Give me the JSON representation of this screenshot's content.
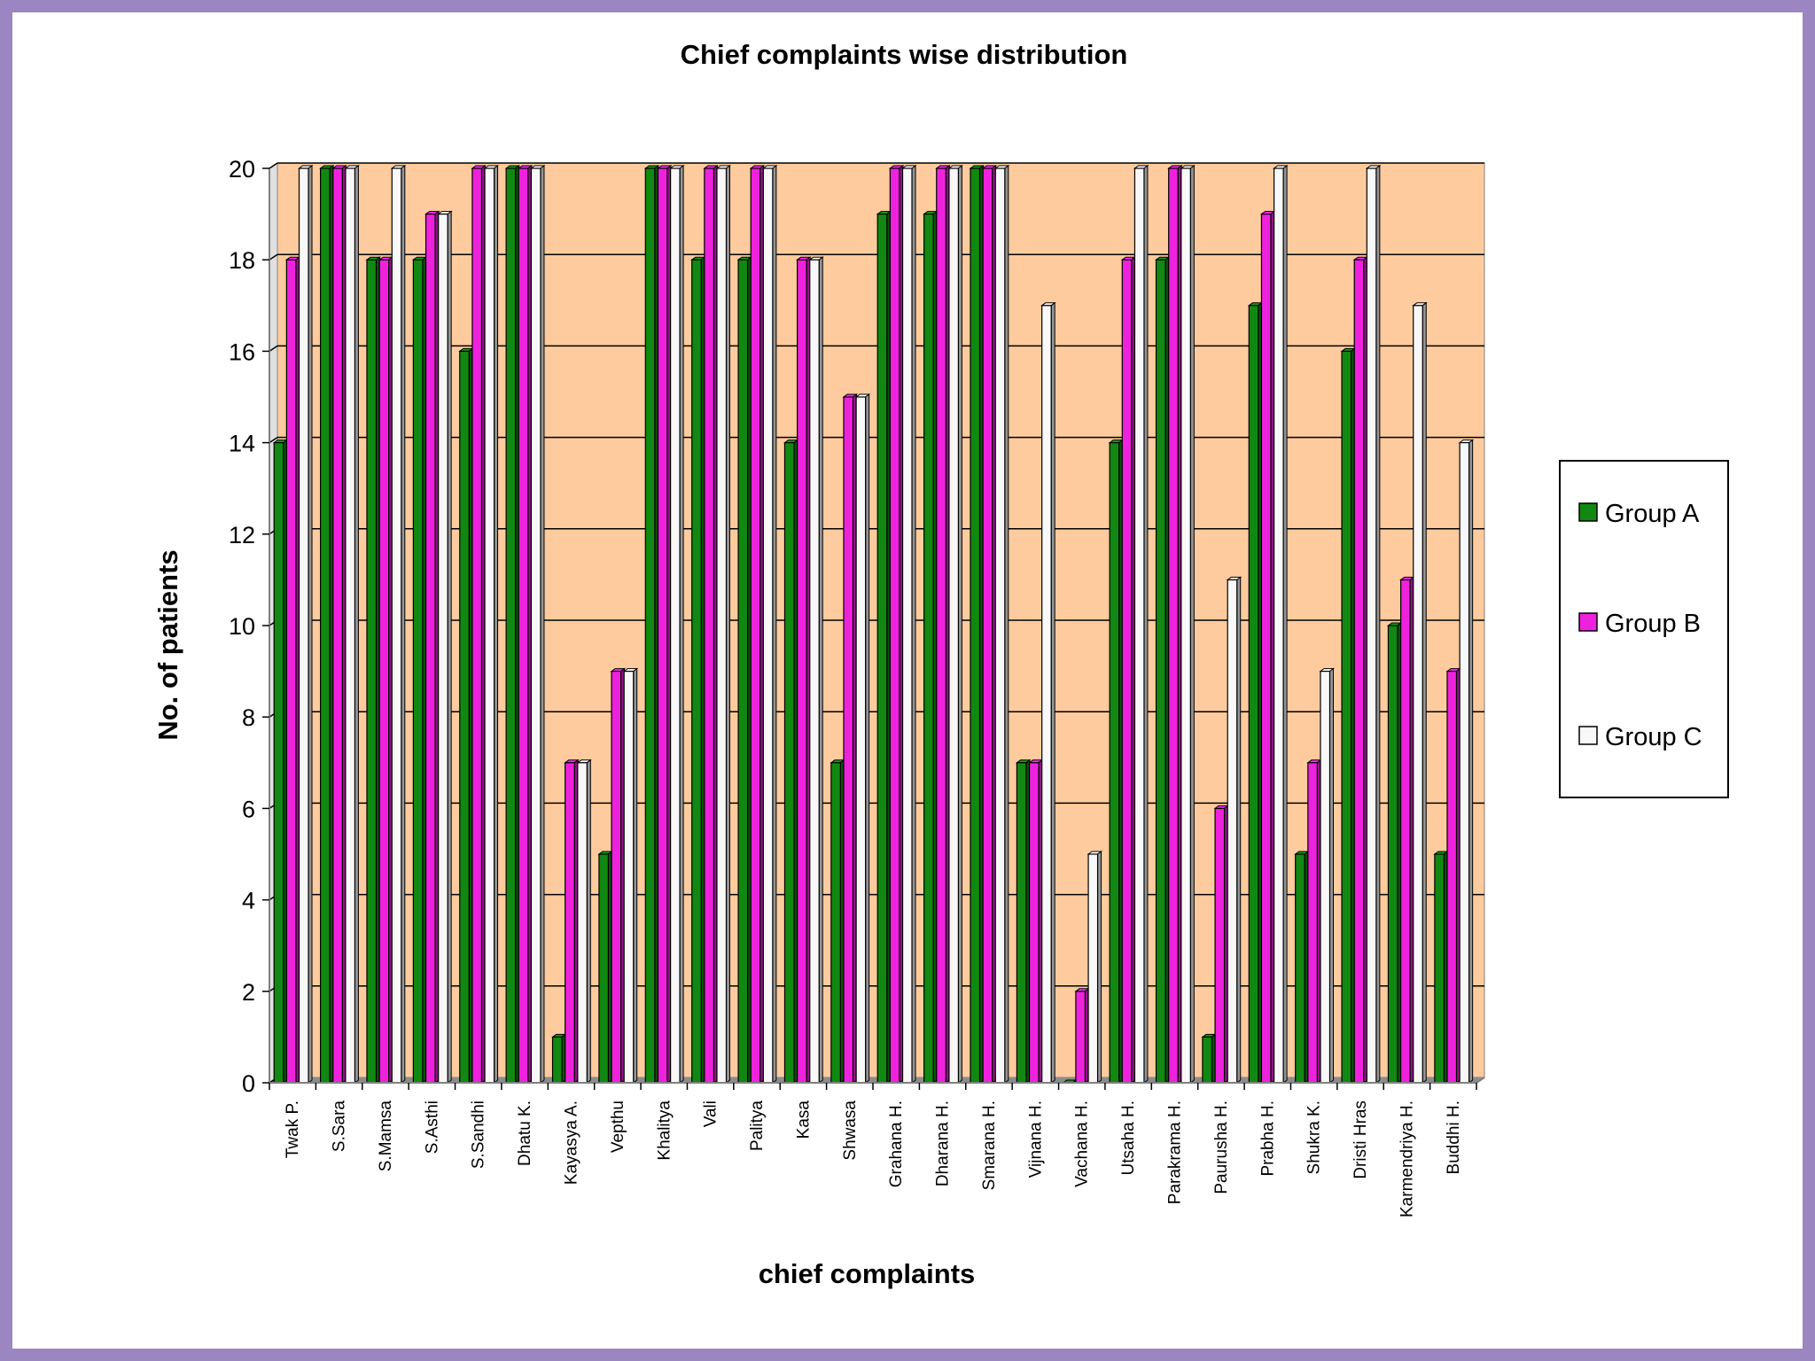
{
  "chart_data": {
    "type": "bar",
    "title": "Chief complaints wise distribution",
    "xlabel": "chief complaints",
    "ylabel": "No. of patients",
    "ylim": [
      0,
      20
    ],
    "yticks": [
      0,
      2,
      4,
      6,
      8,
      10,
      12,
      14,
      16,
      18,
      20
    ],
    "grid": true,
    "legend_position": "right",
    "categories": [
      "Twak P.",
      "S.Sara",
      "S.Mamsa",
      "S.Asthi",
      "S.Sandhi",
      "Dhatu K.",
      "Kayasya A.",
      "Vepthu",
      "Khalitya",
      "Vali",
      "Palitya",
      "Kasa",
      "Shwasa",
      "Grahana H.",
      "Dharana H.",
      "Smarana H.",
      "Vijnana H.",
      "Vachana H.",
      "Utsaha H.",
      "Parakrama H.",
      "Paurusha H.",
      "Prabha H.",
      "Shukra K.",
      "Dristi Hras",
      "Karmendriya H.",
      "Buddhi H."
    ],
    "series": [
      {
        "name": "Group A",
        "color": "#118811",
        "values": [
          14,
          20,
          18,
          18,
          16,
          20,
          1,
          5,
          20,
          18,
          18,
          14,
          7,
          19,
          19,
          20,
          7,
          0,
          14,
          18,
          1,
          17,
          5,
          16,
          10,
          5
        ]
      },
      {
        "name": "Group B",
        "color": "#ee22dd",
        "values": [
          18,
          20,
          18,
          19,
          20,
          20,
          7,
          9,
          20,
          20,
          20,
          18,
          15,
          20,
          20,
          20,
          7,
          2,
          18,
          20,
          6,
          19,
          7,
          18,
          11,
          9
        ]
      },
      {
        "name": "Group C",
        "color": "#f8f8f8",
        "values": [
          20,
          20,
          20,
          19,
          20,
          20,
          7,
          9,
          20,
          20,
          20,
          18,
          15,
          20,
          20,
          20,
          17,
          5,
          20,
          20,
          11,
          20,
          9,
          20,
          17,
          14
        ]
      }
    ]
  }
}
